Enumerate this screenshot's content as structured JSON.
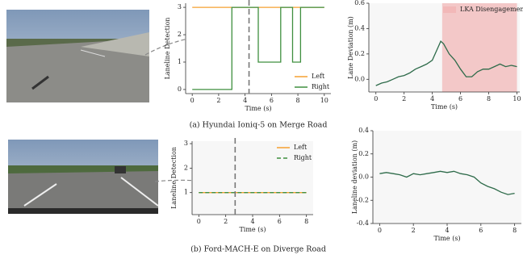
{
  "chart_data": [
    {
      "type": "line",
      "xlabel": "Time (s)",
      "ylabel": "Laneline Detection",
      "xlim": [
        -0.5,
        10.5
      ],
      "ylim": [
        -0.15,
        3.15
      ],
      "xticks": [
        0,
        2,
        4,
        6,
        8,
        10
      ],
      "yticks": [
        0,
        1,
        2,
        3
      ],
      "legend": "lower right",
      "vline": 4.3,
      "series": [
        {
          "name": "Left",
          "color": "#f5a030",
          "linestyle": "solid",
          "x": [
            0,
            10
          ],
          "values": [
            3,
            3
          ]
        },
        {
          "name": "Right",
          "color": "#3f8f3f",
          "linestyle": "solid",
          "x": [
            0,
            3,
            3,
            5,
            5,
            6.7,
            6.7,
            7.6,
            7.6,
            8.2,
            8.2,
            10
          ],
          "values": [
            0,
            0,
            3,
            3,
            1,
            1,
            3,
            3,
            1,
            1,
            3,
            3
          ]
        }
      ]
    },
    {
      "type": "line",
      "xlabel": "Time (s)",
      "ylabel": "Lane Deviation (m)",
      "xlim": [
        -0.5,
        10.2
      ],
      "ylim": [
        -0.1,
        0.6
      ],
      "xticks": [
        0,
        2,
        4,
        6,
        8,
        10
      ],
      "yticks": [
        {
          "value": 0,
          "label": "0.0"
        },
        0.2,
        0.4,
        0.6
      ],
      "legend": "upper right",
      "span": {
        "x": [
          4.7,
          10
        ],
        "label": "LKA Disengagement",
        "color": "#f2b8b8"
      },
      "series": [
        {
          "color": "#2e6b4a",
          "linestyle": "solid",
          "x": [
            0,
            0.4,
            0.8,
            1.2,
            1.6,
            2.0,
            2.4,
            2.8,
            3.2,
            3.6,
            4.0,
            4.4,
            4.6,
            4.8,
            5.2,
            5.6,
            6.0,
            6.4,
            6.8,
            7.2,
            7.6,
            8.0,
            8.4,
            8.8,
            9.2,
            9.6,
            10
          ],
          "values": [
            -0.05,
            -0.03,
            -0.02,
            0.0,
            0.02,
            0.03,
            0.05,
            0.08,
            0.1,
            0.12,
            0.15,
            0.25,
            0.3,
            0.28,
            0.2,
            0.15,
            0.08,
            0.02,
            0.02,
            0.06,
            0.08,
            0.08,
            0.1,
            0.12,
            0.1,
            0.11,
            0.1
          ]
        }
      ]
    },
    {
      "type": "line",
      "xlabel": "Time (s)",
      "ylabel": "Laneline Detection",
      "xlim": [
        -0.5,
        8.5
      ],
      "ylim": [
        0.1,
        3.1
      ],
      "xticks": [
        0,
        2,
        4,
        6,
        8
      ],
      "yticks": [
        1,
        2,
        3
      ],
      "legend": "upper right",
      "vline": 2.7,
      "series": [
        {
          "name": "Left",
          "color": "#f5a030",
          "linestyle": "solid",
          "x": [
            0,
            8
          ],
          "values": [
            1,
            1
          ]
        },
        {
          "name": "Right",
          "color": "#3f8f3f",
          "linestyle": "dashed",
          "x": [
            0,
            8
          ],
          "values": [
            1,
            1
          ]
        }
      ]
    },
    {
      "type": "line",
      "xlabel": "Time (s)",
      "ylabel": "Laneline deviation (m)",
      "xlim": [
        -0.4,
        8.4
      ],
      "ylim": [
        -0.4,
        0.4
      ],
      "xticks": [
        0,
        2,
        4,
        6,
        8
      ],
      "yticks": [
        -0.4,
        -0.2,
        {
          "value": 0,
          "label": "0.0"
        },
        0.2,
        0.4
      ],
      "series": [
        {
          "color": "#2e6b4a",
          "linestyle": "solid",
          "x": [
            0,
            0.4,
            0.8,
            1.2,
            1.6,
            2.0,
            2.4,
            2.8,
            3.2,
            3.6,
            4.0,
            4.4,
            4.8,
            5.2,
            5.6,
            6.0,
            6.4,
            6.8,
            7.2,
            7.6,
            8.0
          ],
          "values": [
            0.03,
            0.04,
            0.03,
            0.02,
            0.0,
            0.03,
            0.02,
            0.03,
            0.04,
            0.05,
            0.04,
            0.05,
            0.03,
            0.02,
            0.0,
            -0.05,
            -0.08,
            -0.1,
            -0.13,
            -0.15,
            -0.14
          ]
        }
      ]
    }
  ],
  "captions": [
    "(a) Hyundai Ioniq-5 on Merge Road",
    "(b) Ford-MACH-E on Diverge Road"
  ]
}
